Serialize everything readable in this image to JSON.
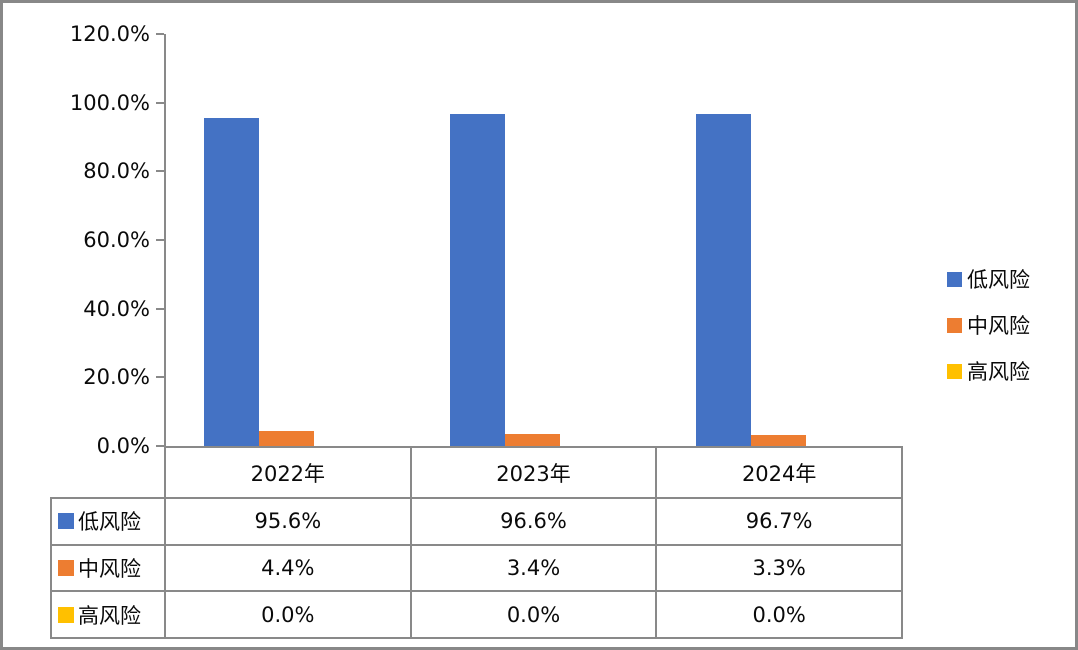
{
  "chart_data": {
    "type": "bar",
    "title": "",
    "xlabel": "",
    "ylabel": "",
    "ylim": [
      0,
      120
    ],
    "grid": false,
    "legend_position": "right",
    "has_data_table": true,
    "y_ticks": [
      "0.0%",
      "20.0%",
      "40.0%",
      "60.0%",
      "80.0%",
      "100.0%",
      "120.0%"
    ],
    "categories": [
      "2022年",
      "2023年",
      "2024年"
    ],
    "series": [
      {
        "name": "低风险",
        "color": "#4472C4",
        "values": [
          95.6,
          96.6,
          96.7
        ],
        "labels": [
          "95.6%",
          "96.6%",
          "96.7%"
        ]
      },
      {
        "name": "中风险",
        "color": "#ED7D31",
        "values": [
          4.4,
          3.4,
          3.3
        ],
        "labels": [
          "4.4%",
          "3.4%",
          "3.3%"
        ]
      },
      {
        "name": "高风险",
        "color": "#FFC000",
        "values": [
          0.0,
          0.0,
          0.0
        ],
        "labels": [
          "0.0%",
          "0.0%",
          "0.0%"
        ]
      }
    ]
  },
  "colors": {
    "axis_line": "#898989",
    "frame_border": "#888888",
    "text": "#0a0a0a"
  }
}
